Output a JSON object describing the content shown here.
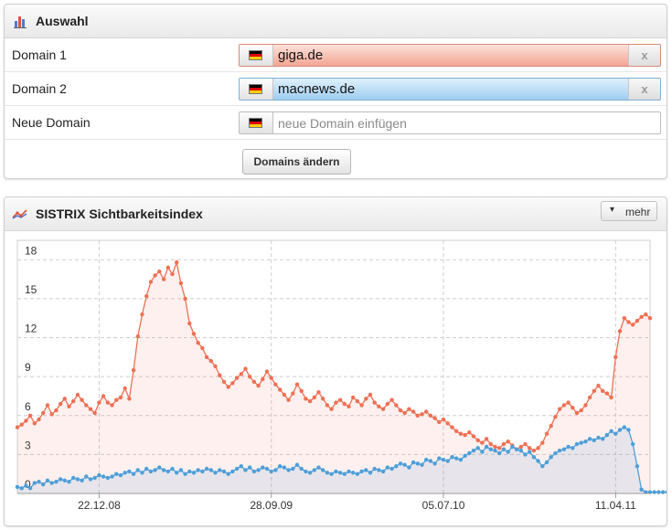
{
  "selection_panel": {
    "title": "Auswahl",
    "icon": "bar-chart-icon",
    "rows": [
      {
        "label": "Domain 1",
        "value": "giga.de",
        "color": "#f0836b"
      },
      {
        "label": "Domain 2",
        "value": "macnews.de",
        "color": "#5aa9de"
      },
      {
        "label": "Neue Domain",
        "placeholder": "neue Domain einfügen"
      }
    ],
    "clear_label": "x",
    "submit_label": "Domains ändern"
  },
  "chart_panel": {
    "title": "SISTRIX Sichtbarkeitsindex",
    "icon": "line-chart-icon",
    "more_label": "mehr"
  },
  "chart_data": {
    "type": "line",
    "title": "SISTRIX Sichtbarkeitsindex",
    "x_tick_labels": [
      "22.12.08",
      "28.09.09",
      "05.07.10",
      "11.04.11"
    ],
    "x_tick_index": [
      19,
      59,
      99,
      139
    ],
    "y_ticks": [
      0,
      3,
      6,
      9,
      12,
      15,
      18
    ],
    "ylim": [
      0,
      19.5
    ],
    "grid": true,
    "series": [
      {
        "name": "giga.de",
        "color": "#ef7054",
        "values": [
          5.1,
          5.3,
          5.6,
          6.0,
          5.4,
          5.7,
          6.2,
          6.8,
          6.1,
          6.4,
          6.9,
          7.3,
          6.7,
          7.1,
          7.6,
          7.2,
          6.8,
          6.5,
          6.2,
          7.0,
          7.5,
          7.0,
          6.8,
          7.2,
          7.4,
          8.1,
          7.3,
          9.5,
          12.1,
          13.8,
          15.2,
          16.3,
          16.8,
          17.1,
          16.5,
          17.4,
          16.9,
          17.8,
          16.2,
          15.0,
          13.1,
          12.3,
          11.6,
          11.2,
          10.5,
          10.2,
          9.8,
          9.1,
          8.6,
          8.2,
          8.5,
          8.9,
          9.2,
          9.6,
          9.0,
          8.6,
          8.3,
          8.8,
          9.4,
          8.9,
          8.4,
          8.0,
          7.6,
          7.2,
          7.7,
          8.4,
          7.9,
          7.3,
          7.1,
          7.4,
          7.8,
          7.3,
          6.8,
          6.5,
          7.0,
          7.2,
          6.9,
          6.7,
          7.4,
          7.1,
          6.8,
          7.3,
          7.6,
          7.0,
          6.7,
          6.5,
          6.9,
          7.2,
          6.8,
          6.4,
          6.2,
          6.5,
          6.3,
          6.0,
          6.1,
          6.3,
          6.0,
          5.8,
          5.5,
          5.7,
          5.4,
          5.1,
          4.8,
          4.6,
          4.5,
          4.7,
          4.4,
          4.1,
          3.9,
          4.2,
          3.8,
          3.6,
          3.5,
          3.8,
          4.0,
          3.7,
          3.4,
          3.6,
          3.8,
          3.5,
          3.3,
          3.5,
          3.9,
          4.6,
          5.2,
          5.9,
          6.5,
          6.8,
          7.0,
          6.6,
          6.2,
          6.4,
          6.8,
          7.4,
          7.9,
          8.3,
          7.9,
          7.7,
          7.4,
          10.5,
          12.5,
          13.5,
          13.2,
          13.0,
          13.3,
          13.6,
          13.8,
          13.5
        ]
      },
      {
        "name": "macnews.de",
        "color": "#4e9fd8",
        "values": [
          0.5,
          0.4,
          0.6,
          0.4,
          0.8,
          0.9,
          0.7,
          1.0,
          0.8,
          0.9,
          1.1,
          1.0,
          0.9,
          1.2,
          1.1,
          1.0,
          1.3,
          1.1,
          1.2,
          1.4,
          1.3,
          1.2,
          1.3,
          1.5,
          1.4,
          1.6,
          1.7,
          1.5,
          1.8,
          1.6,
          1.9,
          1.7,
          1.8,
          2.0,
          1.8,
          1.7,
          1.9,
          1.6,
          1.8,
          1.5,
          1.7,
          1.6,
          1.8,
          1.7,
          1.9,
          1.8,
          1.6,
          1.8,
          1.7,
          1.5,
          1.7,
          1.9,
          2.1,
          1.8,
          2.0,
          1.7,
          1.8,
          2.0,
          1.9,
          1.7,
          1.8,
          2.1,
          2.0,
          1.8,
          1.9,
          2.2,
          1.9,
          1.7,
          1.6,
          1.8,
          2.0,
          1.8,
          1.6,
          1.5,
          1.7,
          1.6,
          1.5,
          1.7,
          1.6,
          1.5,
          1.7,
          1.8,
          1.6,
          1.9,
          1.8,
          1.7,
          2.0,
          1.9,
          2.1,
          2.3,
          2.2,
          2.0,
          2.4,
          2.3,
          2.2,
          2.6,
          2.5,
          2.3,
          2.7,
          2.6,
          2.5,
          2.8,
          2.7,
          2.6,
          2.9,
          3.1,
          3.3,
          3.5,
          3.2,
          3.6,
          3.4,
          3.3,
          3.1,
          3.4,
          3.2,
          3.6,
          3.4,
          3.3,
          3.0,
          3.2,
          2.8,
          2.5,
          2.1,
          2.4,
          2.8,
          3.1,
          3.3,
          3.4,
          3.6,
          3.5,
          3.8,
          3.9,
          4.0,
          4.2,
          4.1,
          4.3,
          4.2,
          4.5,
          4.8,
          4.6,
          4.9,
          5.1,
          4.9,
          3.8,
          2.1,
          0.3,
          0.1,
          0.1,
          0.1,
          0.1,
          0.1,
          0.1,
          0.1
        ]
      }
    ]
  }
}
